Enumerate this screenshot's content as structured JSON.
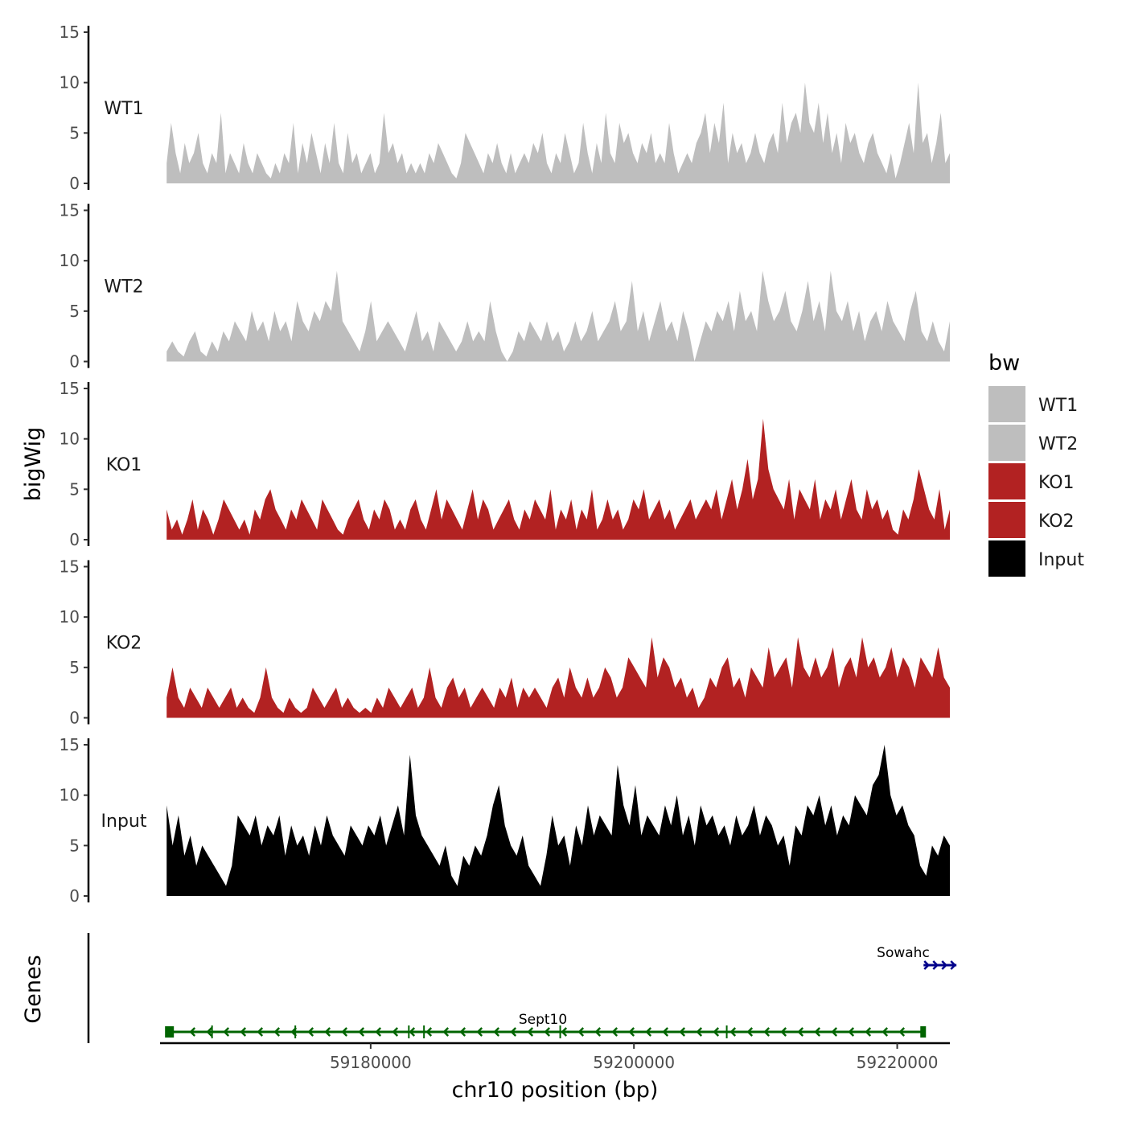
{
  "chart_data": {
    "type": "area",
    "xlabel": "chr10 position (bp)",
    "ylabel": "bigWig",
    "genes_panel_label": "Genes",
    "xlim": [
      59164000,
      59224000
    ],
    "ylim": [
      0,
      15
    ],
    "y_ticks": [
      "0",
      "5",
      "10",
      "15"
    ],
    "x_ticks": [
      59180000,
      59200000,
      59220000
    ],
    "x_tick_labels": [
      "59180000",
      "59200000",
      "59220000"
    ],
    "track_domain": [
      59164500,
      59224000
    ],
    "legend": {
      "title": "bw",
      "entries": [
        {
          "label": "WT1",
          "color": "#bebebe"
        },
        {
          "label": "WT2",
          "color": "#bebebe"
        },
        {
          "label": "KO1",
          "color": "#b22222"
        },
        {
          "label": "KO2",
          "color": "#b22222"
        },
        {
          "label": "Input",
          "color": "#000000"
        }
      ]
    },
    "series": [
      {
        "name": "WT1",
        "color": "#bebebe",
        "values": [
          2,
          6,
          3,
          1,
          4,
          2,
          3,
          5,
          2,
          1,
          3,
          2,
          7,
          1,
          3,
          2,
          1,
          4,
          2,
          1,
          3,
          2,
          1,
          0.5,
          2,
          1,
          3,
          2,
          6,
          1,
          4,
          2,
          5,
          3,
          1,
          4,
          2,
          6,
          2,
          1,
          5,
          2,
          3,
          1,
          2,
          3,
          1,
          2,
          7,
          3,
          4,
          2,
          3,
          1,
          2,
          1,
          2,
          1,
          3,
          2,
          4,
          3,
          2,
          1,
          0.5,
          2,
          5,
          4,
          3,
          2,
          1,
          3,
          2,
          4,
          2,
          1,
          3,
          1,
          2,
          3,
          2,
          4,
          3,
          5,
          2,
          1,
          3,
          2,
          5,
          3,
          1,
          2,
          6,
          3,
          1,
          4,
          2,
          7,
          3,
          2,
          6,
          4,
          5,
          3,
          2,
          4,
          3,
          5,
          2,
          3,
          2,
          6,
          3,
          1,
          2,
          3,
          2,
          4,
          5,
          7,
          3,
          6,
          4,
          8,
          2,
          5,
          3,
          4,
          2,
          3,
          5,
          3,
          2,
          4,
          5,
          3,
          8,
          4,
          6,
          7,
          5,
          10,
          6,
          5,
          8,
          4,
          7,
          3,
          5,
          2,
          6,
          4,
          5,
          3,
          2,
          4,
          5,
          3,
          2,
          1,
          3,
          0.5,
          2,
          4,
          6,
          3,
          10,
          4,
          5,
          2,
          4,
          7,
          2,
          3
        ]
      },
      {
        "name": "WT2",
        "color": "#bebebe",
        "values": [
          1,
          2,
          1,
          0.5,
          2,
          3,
          1,
          0.5,
          2,
          1,
          3,
          2,
          4,
          3,
          2,
          5,
          3,
          4,
          2,
          5,
          3,
          4,
          2,
          6,
          4,
          3,
          5,
          4,
          6,
          5,
          9,
          4,
          3,
          2,
          1,
          3,
          6,
          2,
          3,
          4,
          3,
          2,
          1,
          3,
          5,
          2,
          3,
          1,
          4,
          3,
          2,
          1,
          2,
          4,
          2,
          3,
          2,
          6,
          3,
          1,
          0,
          1,
          3,
          2,
          4,
          3,
          2,
          4,
          2,
          3,
          1,
          2,
          4,
          2,
          3,
          5,
          2,
          3,
          4,
          6,
          3,
          4,
          8,
          3,
          5,
          2,
          4,
          6,
          3,
          4,
          2,
          5,
          3,
          0,
          2,
          4,
          3,
          5,
          4,
          6,
          3,
          7,
          4,
          5,
          3,
          9,
          6,
          4,
          5,
          7,
          4,
          3,
          5,
          8,
          4,
          6,
          3,
          9,
          5,
          4,
          6,
          3,
          5,
          2,
          4,
          5,
          3,
          6,
          4,
          3,
          2,
          5,
          7,
          3,
          2,
          4,
          2,
          1,
          4
        ]
      },
      {
        "name": "KO1",
        "color": "#b22222",
        "values": [
          3,
          1,
          2,
          0.5,
          2,
          4,
          1,
          3,
          2,
          0.5,
          2,
          4,
          3,
          2,
          1,
          2,
          0.5,
          3,
          2,
          4,
          5,
          3,
          2,
          1,
          3,
          2,
          4,
          3,
          2,
          1,
          4,
          3,
          2,
          1,
          0.5,
          2,
          3,
          4,
          2,
          1,
          3,
          2,
          4,
          3,
          1,
          2,
          1,
          3,
          4,
          2,
          1,
          3,
          5,
          2,
          4,
          3,
          2,
          1,
          3,
          5,
          2,
          4,
          3,
          1,
          2,
          3,
          4,
          2,
          1,
          3,
          2,
          4,
          3,
          2,
          5,
          1,
          3,
          2,
          4,
          1,
          3,
          2,
          5,
          1,
          2,
          4,
          2,
          3,
          1,
          2,
          4,
          3,
          5,
          2,
          3,
          4,
          2,
          3,
          1,
          2,
          3,
          4,
          2,
          3,
          4,
          3,
          5,
          2,
          4,
          6,
          3,
          5,
          8,
          4,
          6,
          12,
          7,
          5,
          4,
          3,
          6,
          2,
          5,
          4,
          3,
          6,
          2,
          4,
          3,
          5,
          2,
          4,
          6,
          3,
          2,
          5,
          3,
          4,
          2,
          3,
          1,
          0.5,
          3,
          2,
          4,
          7,
          5,
          3,
          2,
          5,
          1,
          3
        ]
      },
      {
        "name": "KO2",
        "color": "#b22222",
        "values": [
          2,
          5,
          2,
          1,
          3,
          2,
          1,
          3,
          2,
          1,
          2,
          3,
          1,
          2,
          1,
          0.5,
          2,
          5,
          2,
          1,
          0.5,
          2,
          1,
          0.5,
          1,
          3,
          2,
          1,
          2,
          3,
          1,
          2,
          1,
          0.5,
          1,
          0.5,
          2,
          1,
          3,
          2,
          1,
          2,
          3,
          1,
          2,
          5,
          2,
          1,
          3,
          4,
          2,
          3,
          1,
          2,
          3,
          2,
          1,
          3,
          2,
          4,
          1,
          3,
          2,
          3,
          2,
          1,
          3,
          4,
          2,
          5,
          3,
          2,
          4,
          2,
          3,
          5,
          4,
          2,
          3,
          6,
          5,
          4,
          3,
          8,
          4,
          6,
          5,
          3,
          4,
          2,
          3,
          1,
          2,
          4,
          3,
          5,
          6,
          3,
          4,
          2,
          5,
          4,
          3,
          7,
          4,
          5,
          6,
          3,
          8,
          5,
          4,
          6,
          4,
          5,
          7,
          3,
          5,
          6,
          4,
          8,
          5,
          6,
          4,
          5,
          7,
          4,
          6,
          5,
          3,
          6,
          5,
          4,
          7,
          4,
          3
        ]
      },
      {
        "name": "Input",
        "color": "#000000",
        "values": [
          9,
          5,
          8,
          4,
          6,
          3,
          5,
          4,
          3,
          2,
          1,
          3,
          8,
          7,
          6,
          8,
          5,
          7,
          6,
          8,
          4,
          7,
          5,
          6,
          4,
          7,
          5,
          8,
          6,
          5,
          4,
          7,
          6,
          5,
          7,
          6,
          8,
          5,
          7,
          9,
          6,
          14,
          8,
          6,
          5,
          4,
          3,
          5,
          2,
          1,
          4,
          3,
          5,
          4,
          6,
          9,
          11,
          7,
          5,
          4,
          6,
          3,
          2,
          1,
          4,
          8,
          5,
          6,
          3,
          7,
          5,
          9,
          6,
          8,
          7,
          6,
          13,
          9,
          7,
          11,
          6,
          8,
          7,
          6,
          9,
          7,
          10,
          6,
          8,
          5,
          9,
          7,
          8,
          6,
          7,
          5,
          8,
          6,
          7,
          9,
          6,
          8,
          7,
          5,
          6,
          3,
          7,
          6,
          9,
          8,
          10,
          7,
          9,
          6,
          8,
          7,
          10,
          9,
          8,
          11,
          12,
          15,
          10,
          8,
          9,
          7,
          6,
          3,
          2,
          5,
          4,
          6,
          5
        ]
      }
    ],
    "genes": [
      {
        "name": "Sept10",
        "start": 59164500,
        "end": 59222000,
        "strand": "-",
        "color": "#006400"
      },
      {
        "name": "Sowahc",
        "start": 59222000,
        "end": 59224500,
        "strand": "+",
        "color": "#00008b"
      }
    ]
  }
}
